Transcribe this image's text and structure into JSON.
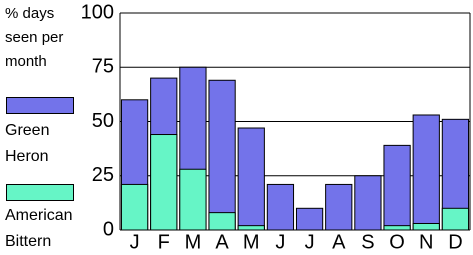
{
  "chart_data": {
    "type": "bar",
    "title": "% days seen per month",
    "categories": [
      "J",
      "F",
      "M",
      "A",
      "M",
      "J",
      "J",
      "A",
      "S",
      "O",
      "N",
      "D"
    ],
    "series": [
      {
        "name": "Green Heron",
        "color": "#7373ea",
        "values": [
          60,
          70,
          75,
          69,
          47,
          21,
          10,
          21,
          25,
          39,
          53,
          51
        ]
      },
      {
        "name": "American Bittern",
        "color": "#66f5c6",
        "values": [
          21,
          44,
          28,
          8,
          2,
          0,
          0,
          0,
          0,
          2,
          3,
          10
        ]
      }
    ],
    "ylim": [
      0,
      100
    ],
    "yticks": [
      0,
      25,
      50,
      75,
      100
    ],
    "grid": true
  }
}
